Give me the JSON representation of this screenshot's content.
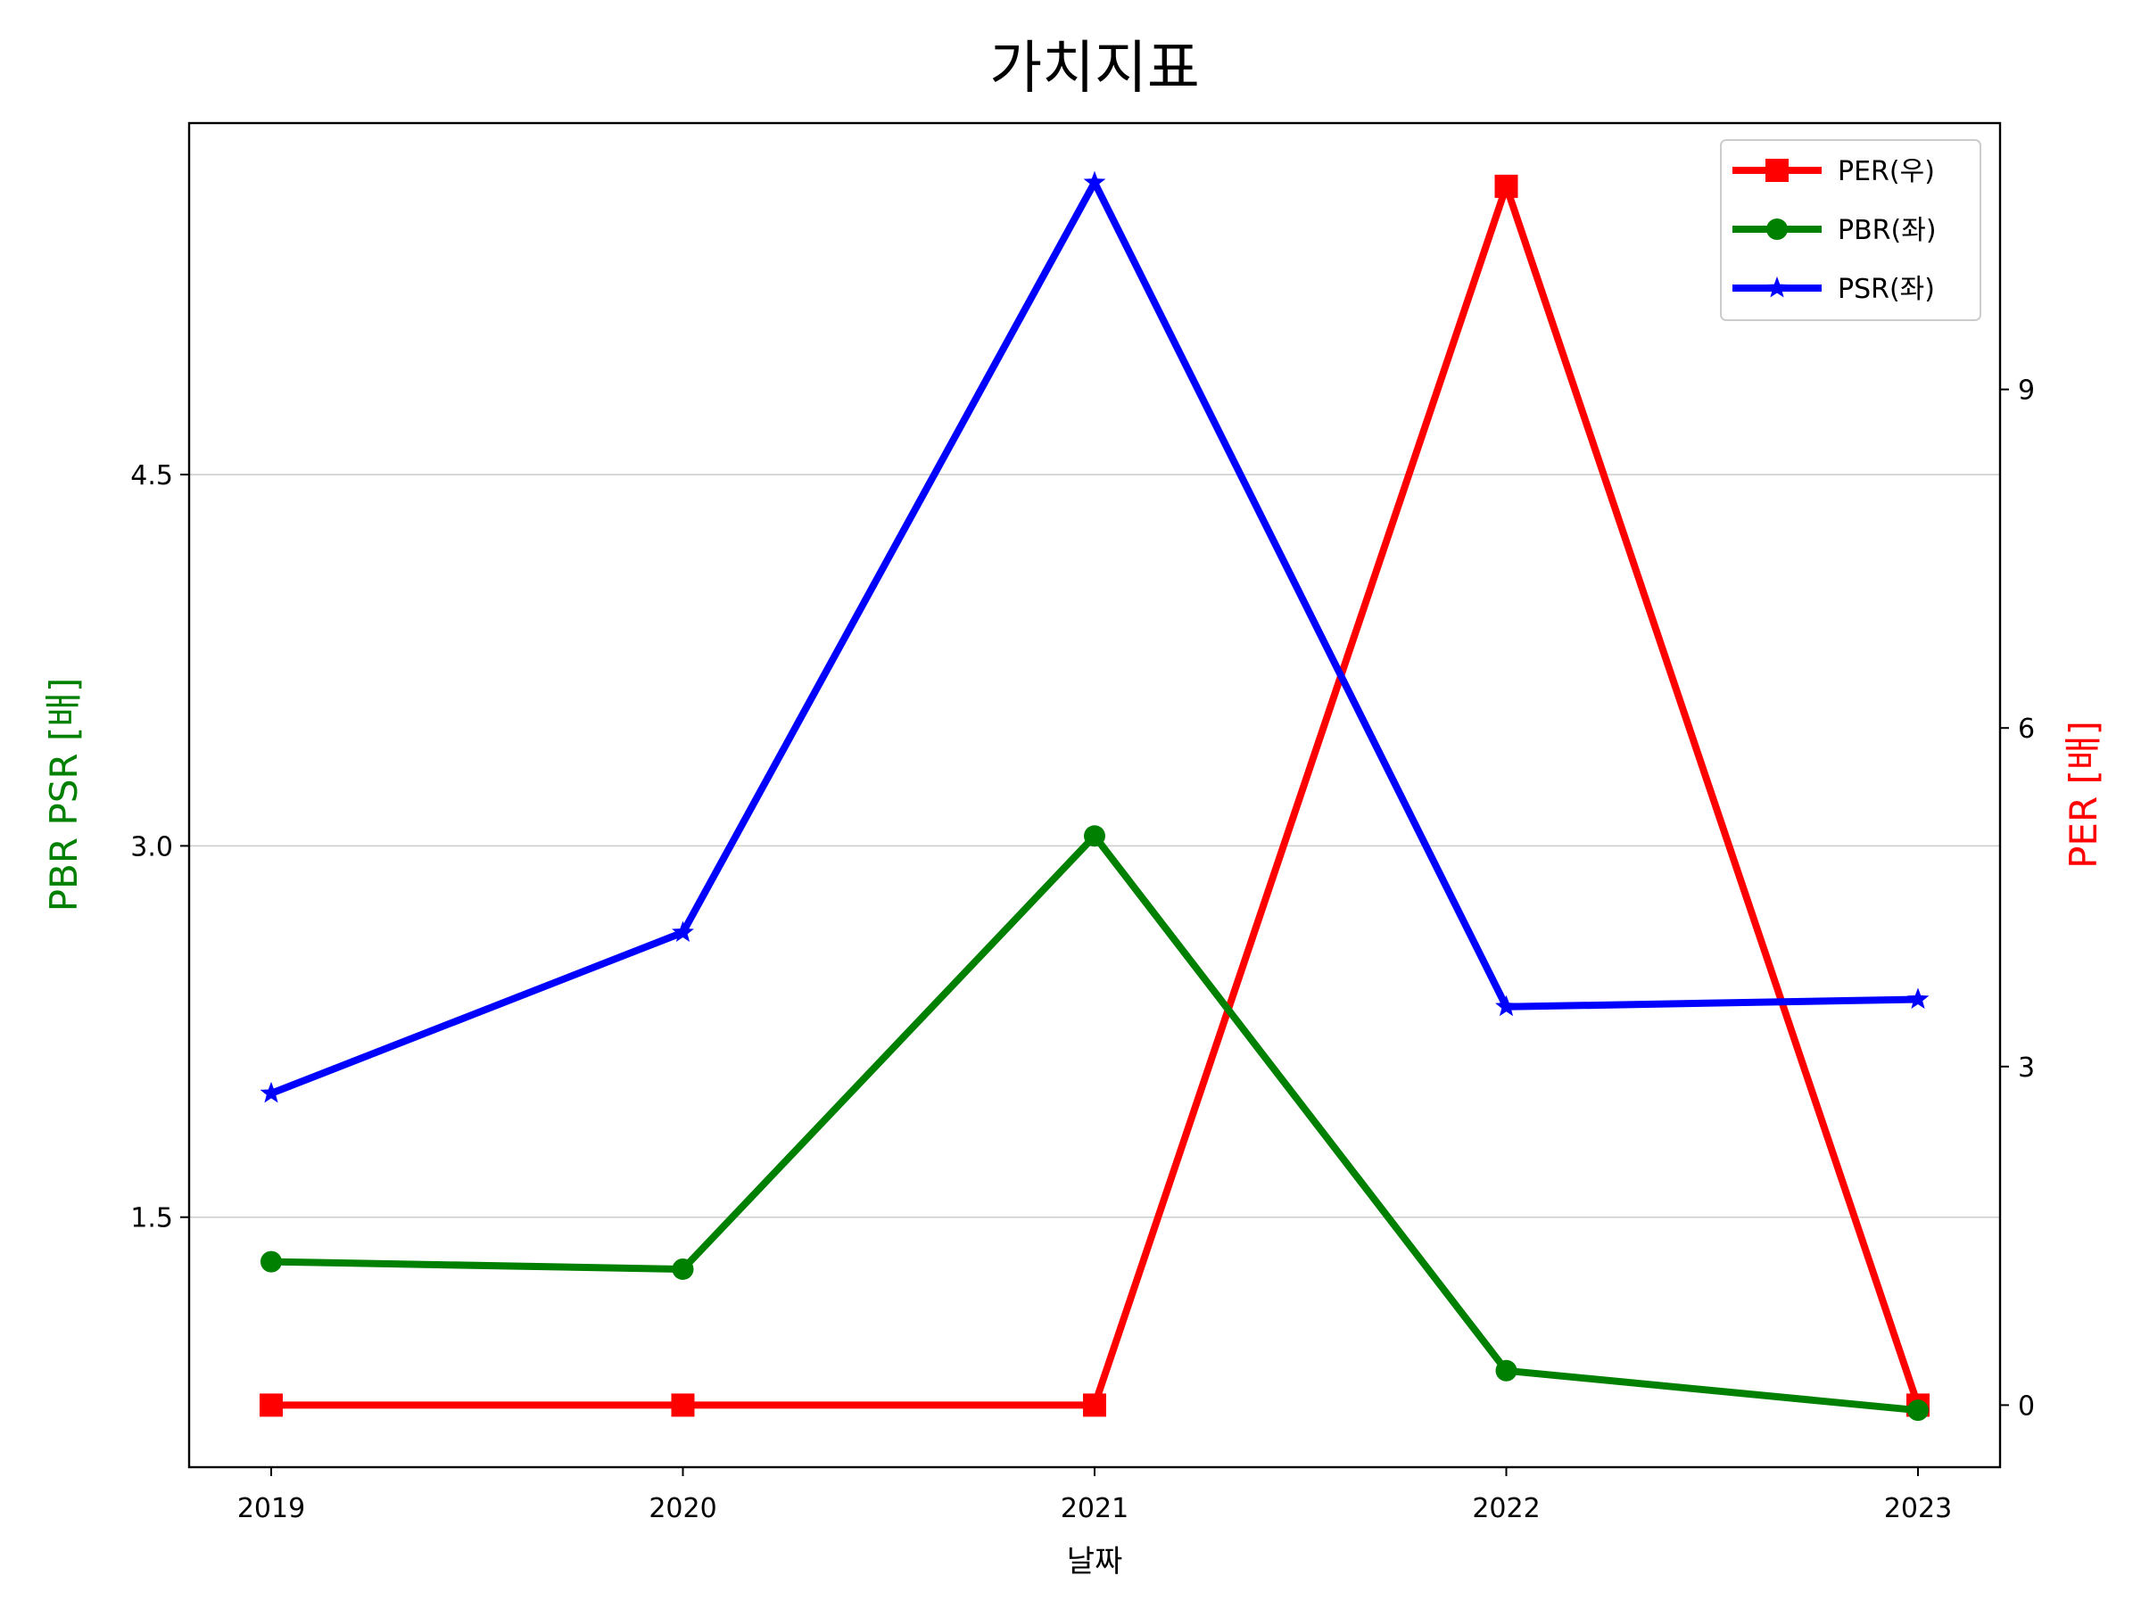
{
  "chart_data": {
    "type": "line",
    "title": "가치지표",
    "xlabel": "날짜",
    "ylabel_left": "PBR PSR [배]",
    "ylabel_right": "PER [배]",
    "categories": [
      "2019",
      "2020",
      "2021",
      "2022",
      "2023"
    ],
    "y_left": {
      "ylim": [
        0.49,
        5.92
      ],
      "ticks": [
        1.5,
        3.0,
        4.5
      ],
      "tick_labels": [
        "1.5",
        "3.0",
        "4.5"
      ],
      "color": "#008000"
    },
    "y_right": {
      "ylim": [
        -0.55,
        11.36
      ],
      "ticks": [
        0,
        3,
        6,
        9
      ],
      "tick_labels": [
        "0",
        "3",
        "6",
        "9"
      ],
      "color": "#ff0000"
    },
    "grid": "horizontal (left axis)",
    "legend_position": "top-right",
    "series": [
      {
        "name": "PER(우)",
        "axis": "right",
        "color": "#ff0000",
        "marker": "square",
        "values": [
          0,
          0,
          0,
          10.8,
          0
        ]
      },
      {
        "name": "PBR(좌)",
        "axis": "left",
        "color": "#008000",
        "marker": "circle",
        "values": [
          1.32,
          1.29,
          3.04,
          0.88,
          0.72
        ]
      },
      {
        "name": "PSR(좌)",
        "axis": "left",
        "color": "#0000ff",
        "marker": "star",
        "values": [
          2.0,
          2.65,
          5.68,
          2.35,
          2.38
        ]
      }
    ]
  }
}
